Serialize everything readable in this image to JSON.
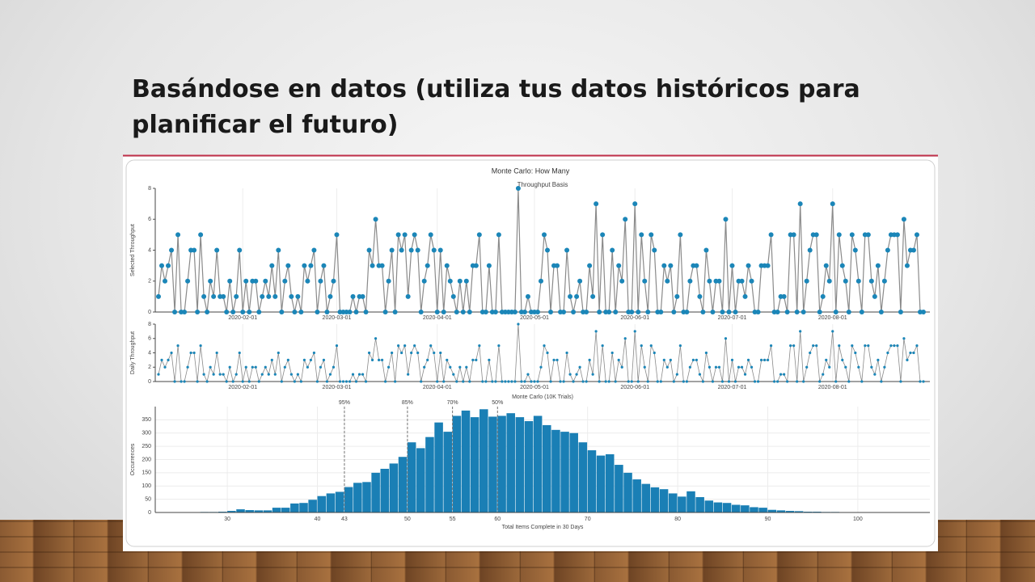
{
  "slide_title": [
    "Basándose en datos (utiliza tus datos históricos para",
    "planificar el futuro)"
  ],
  "figure_title": "Monte Carlo: How Many",
  "chart_data": [
    {
      "type": "line",
      "title": "Throughput Basis",
      "ylabel": "Selected Throughput",
      "color": "#1b86b8",
      "line_color": "#8a8a8a",
      "xlim": [
        "2020-01-05",
        "2020-08-31"
      ],
      "ylim": [
        0,
        8
      ],
      "yticks": [
        0,
        2,
        4,
        6,
        8
      ],
      "xticks": [
        "2020-02-01",
        "2020-03-01",
        "2020-04-01",
        "2020-05-01",
        "2020-06-01",
        "2020-07-01",
        "2020-08-01"
      ],
      "x": [
        "2020-01-06",
        "2020-01-07",
        "2020-01-08",
        "2020-01-09",
        "2020-01-10",
        "2020-01-11",
        "2020-01-12",
        "2020-01-13",
        "2020-01-14",
        "2020-01-15",
        "2020-01-16",
        "2020-01-17",
        "2020-01-18",
        "2020-01-19",
        "2020-01-20",
        "2020-01-21",
        "2020-01-22",
        "2020-01-23",
        "2020-01-24",
        "2020-01-25",
        "2020-01-26",
        "2020-01-27",
        "2020-01-28",
        "2020-01-29",
        "2020-01-30",
        "2020-01-31",
        "2020-02-01",
        "2020-02-02",
        "2020-02-03",
        "2020-02-04",
        "2020-02-05",
        "2020-02-06",
        "2020-02-07",
        "2020-02-08",
        "2020-02-09",
        "2020-02-10",
        "2020-02-11",
        "2020-02-12",
        "2020-02-13",
        "2020-02-14",
        "2020-02-15",
        "2020-02-16",
        "2020-02-17",
        "2020-02-18",
        "2020-02-19",
        "2020-02-20",
        "2020-02-21",
        "2020-02-22",
        "2020-02-23",
        "2020-02-24",
        "2020-02-25",
        "2020-02-26",
        "2020-02-27",
        "2020-02-28",
        "2020-02-29",
        "2020-03-01",
        "2020-03-02",
        "2020-03-03",
        "2020-03-04",
        "2020-03-05",
        "2020-03-06",
        "2020-03-07",
        "2020-03-08",
        "2020-03-09",
        "2020-03-10",
        "2020-03-11",
        "2020-03-12",
        "2020-03-13",
        "2020-03-14",
        "2020-03-15",
        "2020-03-16",
        "2020-03-17",
        "2020-03-18",
        "2020-03-19",
        "2020-03-20",
        "2020-03-21",
        "2020-03-22",
        "2020-03-23",
        "2020-03-24",
        "2020-03-25",
        "2020-03-26",
        "2020-03-27",
        "2020-03-28",
        "2020-03-29",
        "2020-03-30",
        "2020-03-31",
        "2020-04-01",
        "2020-04-02",
        "2020-04-03",
        "2020-04-04",
        "2020-04-05",
        "2020-04-06",
        "2020-04-07",
        "2020-04-08",
        "2020-04-09",
        "2020-04-10",
        "2020-04-11",
        "2020-04-12",
        "2020-04-13",
        "2020-04-14",
        "2020-04-15",
        "2020-04-16",
        "2020-04-17",
        "2020-04-18",
        "2020-04-19",
        "2020-04-20",
        "2020-04-21",
        "2020-04-22",
        "2020-04-23",
        "2020-04-24",
        "2020-04-25",
        "2020-04-26",
        "2020-04-27",
        "2020-04-28",
        "2020-04-29",
        "2020-04-30",
        "2020-05-01",
        "2020-05-02",
        "2020-05-03",
        "2020-05-04",
        "2020-05-05",
        "2020-05-06",
        "2020-05-07",
        "2020-05-08",
        "2020-05-09",
        "2020-05-10",
        "2020-05-11",
        "2020-05-12",
        "2020-05-13",
        "2020-05-14",
        "2020-05-15",
        "2020-05-16",
        "2020-05-17",
        "2020-05-18",
        "2020-05-19",
        "2020-05-20",
        "2020-05-21",
        "2020-05-22",
        "2020-05-23",
        "2020-05-24",
        "2020-05-25",
        "2020-05-26",
        "2020-05-27",
        "2020-05-28",
        "2020-05-29",
        "2020-05-30",
        "2020-05-31",
        "2020-06-01",
        "2020-06-02",
        "2020-06-03",
        "2020-06-04",
        "2020-06-05",
        "2020-06-06",
        "2020-06-07",
        "2020-06-08",
        "2020-06-09",
        "2020-06-10",
        "2020-06-11",
        "2020-06-12",
        "2020-06-13",
        "2020-06-14",
        "2020-06-15",
        "2020-06-16",
        "2020-06-17",
        "2020-06-18",
        "2020-06-19",
        "2020-06-20",
        "2020-06-21",
        "2020-06-22",
        "2020-06-23",
        "2020-06-24",
        "2020-06-25",
        "2020-06-26",
        "2020-06-27",
        "2020-06-28",
        "2020-06-29",
        "2020-06-30",
        "2020-07-01",
        "2020-07-02",
        "2020-07-03",
        "2020-07-04",
        "2020-07-05",
        "2020-07-06",
        "2020-07-07",
        "2020-07-08",
        "2020-07-09",
        "2020-07-10",
        "2020-07-11",
        "2020-07-12",
        "2020-07-13",
        "2020-07-14",
        "2020-07-15",
        "2020-07-16",
        "2020-07-17",
        "2020-07-18",
        "2020-07-19",
        "2020-07-20",
        "2020-07-21",
        "2020-07-22",
        "2020-07-23",
        "2020-07-24",
        "2020-07-25",
        "2020-07-26",
        "2020-07-27",
        "2020-07-28",
        "2020-07-29",
        "2020-07-30",
        "2020-07-31",
        "2020-08-01",
        "2020-08-02",
        "2020-08-03",
        "2020-08-04",
        "2020-08-05",
        "2020-08-06",
        "2020-08-07",
        "2020-08-08",
        "2020-08-09",
        "2020-08-10",
        "2020-08-11",
        "2020-08-12",
        "2020-08-13",
        "2020-08-14",
        "2020-08-15",
        "2020-08-16",
        "2020-08-17",
        "2020-08-18",
        "2020-08-19",
        "2020-08-20",
        "2020-08-21",
        "2020-08-22",
        "2020-08-23",
        "2020-08-24",
        "2020-08-25",
        "2020-08-26",
        "2020-08-27",
        "2020-08-28",
        "2020-08-29"
      ],
      "values": [
        1,
        3,
        2,
        3,
        4,
        0,
        5,
        0,
        0,
        2,
        4,
        4,
        0,
        5,
        1,
        0,
        2,
        1,
        4,
        1,
        1,
        0,
        2,
        0,
        1,
        4,
        0,
        2,
        0,
        2,
        2,
        0,
        1,
        2,
        1,
        3,
        1,
        4,
        0,
        2,
        3,
        1,
        0,
        1,
        0,
        3,
        2,
        3,
        4,
        0,
        2,
        3,
        0,
        1,
        2,
        5,
        0,
        0,
        0,
        0,
        1,
        0,
        1,
        1,
        0,
        4,
        3,
        6,
        3,
        3,
        0,
        2,
        4,
        0,
        5,
        4,
        5,
        1,
        4,
        5,
        4,
        0,
        2,
        3,
        5,
        4,
        0,
        4,
        0,
        3,
        2,
        1,
        0,
        2,
        0,
        2,
        0,
        3,
        3,
        5,
        0,
        0,
        3,
        0,
        0,
        5,
        0,
        0,
        0,
        0,
        0,
        8,
        0,
        0,
        1,
        0,
        0,
        0,
        2,
        5,
        4,
        0,
        3,
        3,
        0,
        0,
        4,
        1,
        0,
        1,
        2,
        0,
        0,
        3,
        1,
        7,
        0,
        5,
        0,
        0,
        4,
        0,
        3,
        2,
        6,
        0,
        0,
        7,
        0,
        5,
        2,
        0,
        5,
        4,
        0,
        0,
        3,
        2,
        3,
        0,
        1,
        5,
        0,
        0,
        2,
        3,
        3,
        1,
        0,
        4,
        2,
        0,
        2,
        2,
        0,
        6,
        0,
        3,
        0,
        2,
        2,
        1,
        3,
        2,
        0,
        0,
        3,
        3,
        3,
        5,
        0,
        0,
        1,
        1,
        0,
        5,
        5,
        0,
        7,
        0,
        2,
        4,
        5,
        5,
        0,
        1,
        3,
        2,
        7,
        0,
        5,
        3,
        2,
        0,
        5,
        4,
        2,
        0,
        5,
        5,
        2,
        1,
        3,
        0,
        2,
        4,
        5,
        5,
        5,
        0,
        6,
        3,
        4,
        4,
        5,
        0,
        0
      ]
    },
    {
      "type": "line",
      "ylabel": "Daily Throughput",
      "color": "#1b86b8",
      "line_color": "#8a8a8a",
      "xlim": [
        "2020-01-05",
        "2020-08-31"
      ],
      "ylim": [
        0,
        8
      ],
      "yticks": [
        0,
        2,
        4,
        6,
        8
      ],
      "xticks": [
        "2020-02-01",
        "2020-03-01",
        "2020-04-01",
        "2020-05-01",
        "2020-06-01",
        "2020-07-01",
        "2020-08-01"
      ]
    },
    {
      "type": "histogram",
      "title": "Monte Carlo (10K Trials)",
      "xlabel": "Total Items Complete in 30 Days",
      "ylabel": "Occurrences",
      "color": "#1a7fb5",
      "xlim": [
        22,
        108
      ],
      "ylim": [
        0,
        400
      ],
      "xticks": [
        30,
        40,
        43,
        50,
        55,
        60,
        70,
        80,
        90,
        100
      ],
      "yticks": [
        0,
        50,
        100,
        150,
        200,
        250,
        300,
        350
      ],
      "bins": [
        26,
        27,
        28,
        29,
        30,
        31,
        32,
        33,
        34,
        35,
        36,
        37,
        38,
        39,
        40,
        41,
        42,
        43,
        44,
        45,
        46,
        47,
        48,
        49,
        50,
        51,
        52,
        53,
        54,
        55,
        56,
        57,
        58,
        59,
        60,
        61,
        62,
        63,
        64,
        65,
        66,
        67,
        68,
        69,
        70,
        71,
        72,
        73,
        74,
        75,
        76,
        77,
        78,
        79,
        80,
        81,
        82,
        83,
        84,
        85,
        86,
        87,
        88,
        89,
        90,
        91,
        92,
        93,
        94,
        95,
        96,
        97,
        98,
        99,
        100,
        101,
        102,
        103,
        104
      ],
      "values": [
        1,
        2,
        2,
        3,
        6,
        12,
        9,
        8,
        8,
        18,
        18,
        34,
        36,
        48,
        62,
        72,
        78,
        96,
        112,
        115,
        150,
        165,
        185,
        210,
        265,
        243,
        285,
        340,
        305,
        365,
        385,
        360,
        390,
        362,
        365,
        375,
        360,
        345,
        365,
        330,
        312,
        305,
        300,
        265,
        235,
        215,
        220,
        180,
        150,
        125,
        108,
        95,
        88,
        72,
        60,
        80,
        58,
        45,
        38,
        36,
        29,
        27,
        20,
        18,
        10,
        8,
        6,
        5,
        3,
        3,
        2,
        2,
        1,
        1,
        1,
        0,
        0,
        0
      ],
      "annotations": [
        {
          "x": 43,
          "label": "95%"
        },
        {
          "x": 50,
          "label": "85%"
        },
        {
          "x": 55,
          "label": "70%"
        },
        {
          "x": 60,
          "label": "50%"
        }
      ]
    }
  ]
}
